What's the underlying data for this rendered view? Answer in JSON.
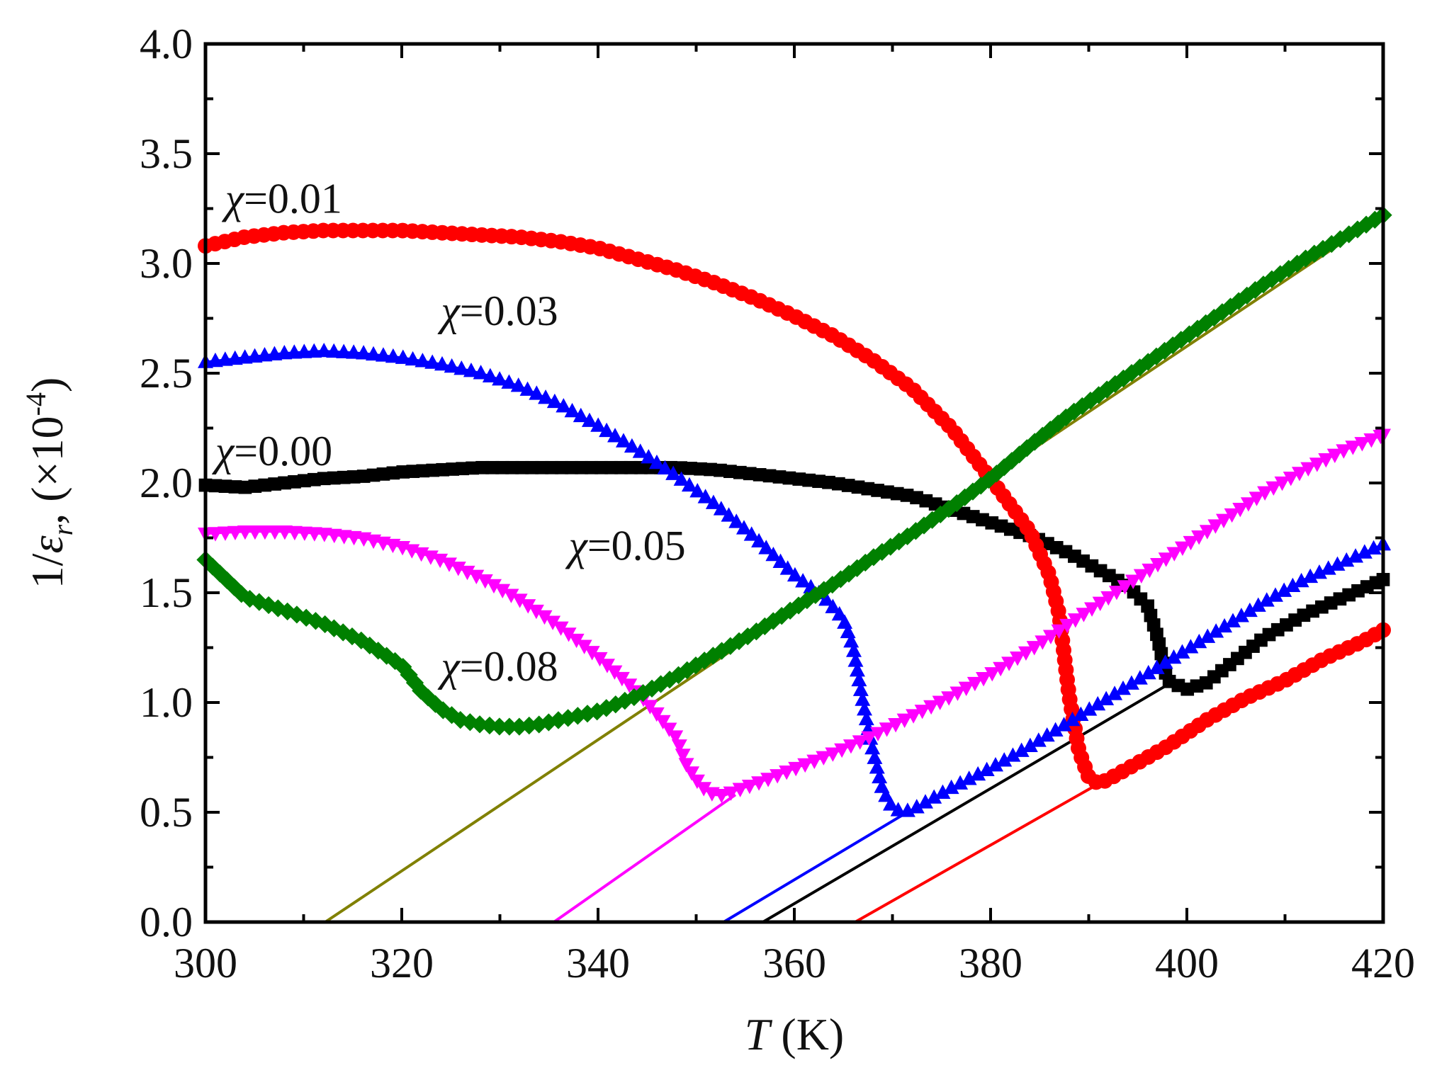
{
  "chart_data": {
    "type": "line",
    "xlabel_var": "T",
    "xlabel_unit": "(K)",
    "ylabel_prefix": "1/",
    "ylabel_var": "ε",
    "ylabel_sub": "r",
    "ylabel_unit_open": "(×10",
    "ylabel_unit_exp": "-4",
    "ylabel_unit_close": ")",
    "xlim": [
      300,
      420
    ],
    "ylim": [
      0.0,
      4.0
    ],
    "xticks": [
      "300",
      "320",
      "340",
      "360",
      "380",
      "400",
      "420"
    ],
    "yticks": [
      "0.0",
      "0.5",
      "1.0",
      "1.5",
      "2.0",
      "2.5",
      "3.0",
      "3.5",
      "4.0"
    ],
    "colors": {
      "x000": "#000000",
      "x001": "#ff0000",
      "x003": "#0000ff",
      "x005": "#ff00ff",
      "x008": "#008000",
      "fit008": "#808000"
    },
    "series": [
      {
        "id": "x000",
        "name": "x=0.00",
        "label_symbol": "χ",
        "label_value": "=0.00",
        "marker": "square",
        "label_at": [
          301,
          2.08
        ],
        "x": [
          300,
          304,
          308,
          312,
          316,
          320,
          324,
          328,
          332,
          336,
          340,
          344,
          348,
          352,
          356,
          360,
          364,
          368,
          372,
          376,
          380,
          384,
          388,
          390,
          392,
          394,
          396,
          397,
          398,
          400,
          402,
          404,
          406,
          408,
          410,
          412,
          414,
          416,
          418,
          420
        ],
        "y": [
          1.99,
          1.98,
          2.0,
          2.02,
          2.03,
          2.05,
          2.06,
          2.07,
          2.07,
          2.07,
          2.07,
          2.07,
          2.07,
          2.06,
          2.04,
          2.02,
          2.0,
          1.97,
          1.94,
          1.88,
          1.82,
          1.76,
          1.68,
          1.63,
          1.58,
          1.53,
          1.44,
          1.3,
          1.1,
          1.06,
          1.09,
          1.16,
          1.23,
          1.3,
          1.35,
          1.4,
          1.44,
          1.48,
          1.52,
          1.56
        ]
      },
      {
        "id": "x001",
        "name": "x=0.01",
        "label_symbol": "χ",
        "label_value": "=0.01",
        "marker": "circle",
        "label_at": [
          302,
          3.23
        ],
        "x": [
          300,
          304,
          308,
          312,
          316,
          320,
          324,
          328,
          332,
          336,
          340,
          344,
          348,
          352,
          356,
          360,
          364,
          368,
          372,
          376,
          380,
          384,
          386,
          387,
          388,
          389,
          390,
          391,
          392,
          394,
          396,
          398,
          400,
          402,
          404,
          406,
          408,
          410,
          412,
          414,
          416,
          418,
          420
        ],
        "y": [
          3.08,
          3.12,
          3.14,
          3.15,
          3.15,
          3.15,
          3.14,
          3.13,
          3.12,
          3.1,
          3.07,
          3.02,
          2.97,
          2.91,
          2.84,
          2.76,
          2.67,
          2.56,
          2.43,
          2.25,
          2.02,
          1.78,
          1.58,
          1.4,
          1.03,
          0.78,
          0.66,
          0.63,
          0.65,
          0.7,
          0.75,
          0.8,
          0.86,
          0.92,
          0.97,
          1.02,
          1.06,
          1.1,
          1.15,
          1.2,
          1.24,
          1.28,
          1.33
        ]
      },
      {
        "id": "x003",
        "name": "x=0.03",
        "label_symbol": "χ",
        "label_value": "=0.03",
        "marker": "triangle-up",
        "label_at": [
          324,
          2.72
        ],
        "x": [
          300,
          304,
          308,
          312,
          316,
          320,
          324,
          328,
          332,
          336,
          340,
          344,
          348,
          352,
          356,
          360,
          363,
          365,
          366,
          367,
          368,
          369,
          370,
          371,
          372,
          374,
          376,
          380,
          384,
          388,
          392,
          396,
          400,
          404,
          408,
          412,
          416,
          420
        ],
        "y": [
          2.55,
          2.57,
          2.59,
          2.6,
          2.59,
          2.57,
          2.54,
          2.5,
          2.44,
          2.36,
          2.26,
          2.15,
          2.03,
          1.9,
          1.75,
          1.58,
          1.48,
          1.38,
          1.25,
          1.0,
          0.78,
          0.6,
          0.52,
          0.5,
          0.51,
          0.56,
          0.61,
          0.7,
          0.8,
          0.91,
          1.02,
          1.13,
          1.24,
          1.35,
          1.46,
          1.56,
          1.64,
          1.72
        ]
      },
      {
        "id": "x005",
        "name": "x=0.05",
        "label_symbol": "χ",
        "label_value": "=0.05",
        "marker": "triangle-down",
        "label_at": [
          337,
          1.65
        ],
        "x": [
          300,
          304,
          308,
          312,
          316,
          320,
          324,
          328,
          332,
          336,
          340,
          344,
          346,
          348,
          349,
          350,
          351,
          352,
          353,
          354,
          356,
          360,
          364,
          368,
          372,
          376,
          380,
          384,
          388,
          392,
          396,
          400,
          404,
          408,
          412,
          416,
          420
        ],
        "y": [
          1.77,
          1.78,
          1.78,
          1.77,
          1.75,
          1.71,
          1.65,
          1.57,
          1.47,
          1.35,
          1.21,
          1.05,
          0.95,
          0.84,
          0.72,
          0.65,
          0.6,
          0.58,
          0.58,
          0.6,
          0.63,
          0.7,
          0.77,
          0.85,
          0.94,
          1.03,
          1.13,
          1.24,
          1.36,
          1.48,
          1.6,
          1.72,
          1.84,
          1.96,
          2.06,
          2.15,
          2.22
        ]
      },
      {
        "id": "x008",
        "name": "x=0.08",
        "label_symbol": "χ",
        "label_value": "=0.08",
        "marker": "diamond",
        "label_at": [
          324,
          1.1
        ],
        "x": [
          300,
          304,
          308,
          312,
          316,
          320,
          322,
          324,
          326,
          328,
          330,
          332,
          334,
          336,
          340,
          344,
          348,
          352,
          356,
          360,
          364,
          368,
          372,
          376,
          380,
          384,
          388,
          392,
          396,
          400,
          404,
          408,
          412,
          416,
          420
        ],
        "y": [
          1.65,
          1.48,
          1.42,
          1.36,
          1.28,
          1.17,
          1.05,
          0.97,
          0.92,
          0.9,
          0.89,
          0.89,
          0.9,
          0.92,
          0.96,
          1.03,
          1.12,
          1.22,
          1.32,
          1.43,
          1.54,
          1.66,
          1.77,
          1.89,
          2.02,
          2.17,
          2.31,
          2.43,
          2.55,
          2.67,
          2.79,
          2.91,
          3.02,
          3.12,
          3.22
        ]
      }
    ],
    "fit_lines": [
      {
        "id": "fit008",
        "series": "x=0.08",
        "x": [
          312.2,
          420
        ],
        "y": [
          0.0,
          3.22
        ]
      },
      {
        "id": "fit005",
        "series": "x=0.05",
        "x": [
          335.5,
          354
        ],
        "y": [
          0.0,
          0.58
        ]
      },
      {
        "id": "fit003",
        "series": "x=0.03",
        "x": [
          352.8,
          371.5
        ],
        "y": [
          0.0,
          0.5
        ]
      },
      {
        "id": "fit000",
        "series": "x=0.00",
        "x": [
          356.8,
          398
        ],
        "y": [
          0.0,
          1.08
        ]
      },
      {
        "id": "fit001",
        "series": "x=0.01",
        "x": [
          366.2,
          391
        ],
        "y": [
          0.0,
          0.63
        ]
      }
    ]
  }
}
